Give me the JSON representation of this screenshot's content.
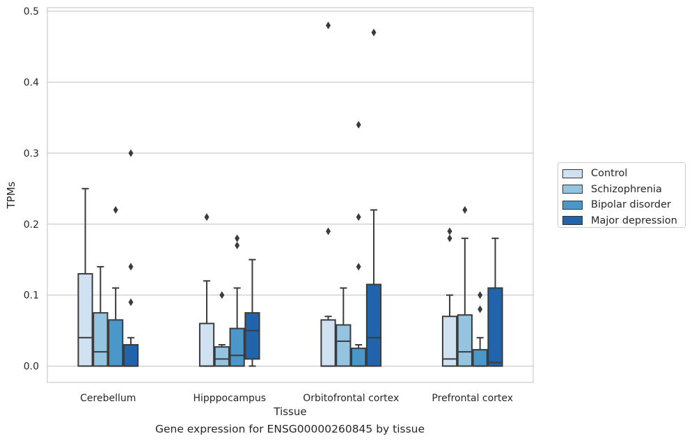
{
  "caption": "Gene expression for ENSG00000260845 by tissue",
  "chart_data": {
    "type": "box",
    "xlabel": "Tissue",
    "ylabel": "TPMs",
    "ylim": [
      -0.023,
      0.505
    ],
    "yticks": [
      "0.0",
      "0.1",
      "0.2",
      "0.3",
      "0.4",
      "0.5"
    ],
    "grid": "horizontal",
    "legend_position": "right",
    "categories": [
      "Cerebellum",
      "Hipppocampus",
      "Orbitofrontal cortex",
      "Prefrontal cortex"
    ],
    "series": [
      {
        "name": "Control",
        "color": "#d0e1f2",
        "boxes": [
          {
            "whislo": 0.0,
            "q1": 0.0,
            "med": 0.04,
            "q3": 0.13,
            "whishi": 0.25,
            "fliers": []
          },
          {
            "whislo": 0.0,
            "q1": 0.0,
            "med": 0.0,
            "q3": 0.06,
            "whishi": 0.12,
            "fliers": [
              0.21
            ]
          },
          {
            "whislo": 0.0,
            "q1": 0.0,
            "med": 0.0,
            "q3": 0.065,
            "whishi": 0.07,
            "fliers": [
              0.19,
              0.48
            ]
          },
          {
            "whislo": 0.0,
            "q1": 0.0,
            "med": 0.01,
            "q3": 0.07,
            "whishi": 0.1,
            "fliers": [
              0.18,
              0.19
            ]
          }
        ]
      },
      {
        "name": "Schizophrenia",
        "color": "#94c4df",
        "boxes": [
          {
            "whislo": 0.0,
            "q1": 0.0,
            "med": 0.02,
            "q3": 0.075,
            "whishi": 0.14,
            "fliers": []
          },
          {
            "whislo": 0.0,
            "q1": 0.0,
            "med": 0.01,
            "q3": 0.027,
            "whishi": 0.03,
            "fliers": [
              0.1
            ]
          },
          {
            "whislo": 0.0,
            "q1": 0.0,
            "med": 0.035,
            "q3": 0.058,
            "whishi": 0.11,
            "fliers": []
          },
          {
            "whislo": 0.0,
            "q1": 0.0,
            "med": 0.02,
            "q3": 0.072,
            "whishi": 0.18,
            "fliers": [
              0.22
            ]
          }
        ]
      },
      {
        "name": "Bipolar disorder",
        "color": "#4a98c9",
        "boxes": [
          {
            "whislo": 0.0,
            "q1": 0.0,
            "med": 0.0,
            "q3": 0.065,
            "whishi": 0.11,
            "fliers": [
              0.22
            ]
          },
          {
            "whislo": 0.0,
            "q1": 0.0,
            "med": 0.015,
            "q3": 0.053,
            "whishi": 0.11,
            "fliers": [
              0.17,
              0.18
            ]
          },
          {
            "whislo": 0.0,
            "q1": 0.0,
            "med": 0.0,
            "q3": 0.025,
            "whishi": 0.03,
            "fliers": [
              0.14,
              0.21,
              0.34
            ]
          },
          {
            "whislo": 0.0,
            "q1": 0.0,
            "med": 0.0,
            "q3": 0.023,
            "whishi": 0.04,
            "fliers": [
              0.08,
              0.1
            ]
          }
        ]
      },
      {
        "name": "Major depression",
        "color": "#2164ab",
        "boxes": [
          {
            "whislo": 0.0,
            "q1": 0.0,
            "med": 0.0,
            "q3": 0.03,
            "whishi": 0.04,
            "fliers": [
              0.09,
              0.14,
              0.3
            ]
          },
          {
            "whislo": 0.0,
            "q1": 0.01,
            "med": 0.05,
            "q3": 0.075,
            "whishi": 0.15,
            "fliers": []
          },
          {
            "whislo": 0.0,
            "q1": 0.0,
            "med": 0.04,
            "q3": 0.115,
            "whishi": 0.22,
            "fliers": [
              0.47
            ]
          },
          {
            "whislo": 0.0,
            "q1": 0.0,
            "med": 0.005,
            "q3": 0.11,
            "whishi": 0.18,
            "fliers": []
          }
        ]
      }
    ]
  }
}
